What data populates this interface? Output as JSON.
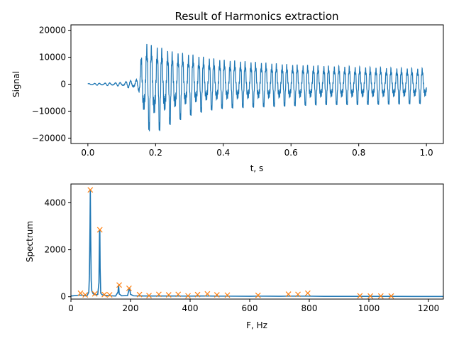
{
  "chart_data": [
    {
      "type": "line",
      "title": "Result of Harmonics extraction",
      "xlabel": "t, s",
      "ylabel": "Signal",
      "xlim": [
        -0.05,
        1.05
      ],
      "ylim": [
        -22000,
        22000
      ],
      "xticks": [
        0.0,
        0.2,
        0.4,
        0.6,
        0.8,
        1.0
      ],
      "xtick_labels": [
        "0.0",
        "0.2",
        "0.4",
        "0.6",
        "0.8",
        "1.0"
      ],
      "yticks": [
        -20000,
        -10000,
        0,
        10000,
        20000
      ],
      "ytick_labels": [
        "−20000",
        "−10000",
        "0",
        "10000",
        "20000"
      ],
      "grid": false,
      "series": [
        {
          "color": "#1f77b4",
          "envelope": {
            "t": [
              0.0,
              0.1,
              0.15,
              0.155,
              0.16,
              0.18,
              0.2,
              0.25,
              0.3,
              0.35,
              0.4,
              0.5,
              0.6,
              0.7,
              0.8,
              0.9,
              1.0
            ],
            "upper": [
              300,
              800,
              2500,
              6000,
              20000,
              17000,
              16500,
              14000,
              13000,
              11500,
              10500,
              9500,
              8500,
              8000,
              7500,
              7000,
              6800
            ],
            "lower": [
              -300,
              -800,
              -2500,
              -6000,
              -17000,
              -19000,
              -20000,
              -16000,
              -13000,
              -11000,
              -10000,
              -9500,
              -9000,
              -8500,
              -8500,
              -8300,
              -8000
            ]
          },
          "note_hz": 65
        }
      ]
    },
    {
      "type": "line",
      "title": "",
      "xlabel": "F, Hz",
      "ylabel": "Spectrum",
      "xlim": [
        0,
        1250
      ],
      "ylim": [
        -100,
        4800
      ],
      "xticks": [
        0,
        200,
        400,
        600,
        800,
        1000,
        1200
      ],
      "xtick_labels": [
        "0",
        "200",
        "400",
        "600",
        "800",
        "1000",
        "1200"
      ],
      "yticks": [
        0,
        2000,
        4000
      ],
      "ytick_labels": [
        "0",
        "2000",
        "4000"
      ],
      "grid": false,
      "series": [
        {
          "color": "#1f77b4",
          "x": [
            0,
            30,
            40,
            50,
            55,
            60,
            62,
            64,
            65,
            66,
            68,
            70,
            75,
            80,
            85,
            90,
            94,
            96,
            97,
            98,
            100,
            105,
            115,
            125,
            135,
            150,
            158,
            160,
            162,
            170,
            190,
            195,
            197,
            200,
            210,
            230,
            260,
            300,
            330,
            360,
            390,
            430,
            460,
            495,
            525,
            600,
            630,
            700,
            730,
            765,
            795,
            850,
            970,
            1005,
            1040,
            1075,
            1150,
            1250
          ],
          "y": [
            30,
            70,
            60,
            40,
            60,
            200,
            900,
            3000,
            4550,
            3000,
            700,
            250,
            120,
            90,
            80,
            100,
            600,
            2800,
            2850,
            1200,
            150,
            80,
            60,
            50,
            40,
            30,
            200,
            500,
            120,
            40,
            50,
            300,
            380,
            100,
            40,
            35,
            30,
            30,
            30,
            30,
            25,
            30,
            30,
            25,
            25,
            20,
            25,
            20,
            25,
            25,
            25,
            15,
            15,
            15,
            15,
            15,
            10,
            10
          ]
        },
        {
          "color": "#ff7f0e",
          "marker": "x",
          "name": "",
          "x": [
            32,
            48,
            65,
            80,
            97,
            112,
            130,
            162,
            195,
            230,
            262,
            295,
            328,
            360,
            393,
            425,
            458,
            490,
            525,
            628,
            730,
            762,
            795,
            970,
            1005,
            1040,
            1075
          ],
          "y": [
            150,
            80,
            4550,
            120,
            2850,
            90,
            80,
            500,
            360,
            90,
            50,
            100,
            80,
            100,
            40,
            90,
            120,
            80,
            70,
            60,
            110,
            100,
            150,
            40,
            30,
            30,
            30
          ]
        }
      ]
    }
  ]
}
